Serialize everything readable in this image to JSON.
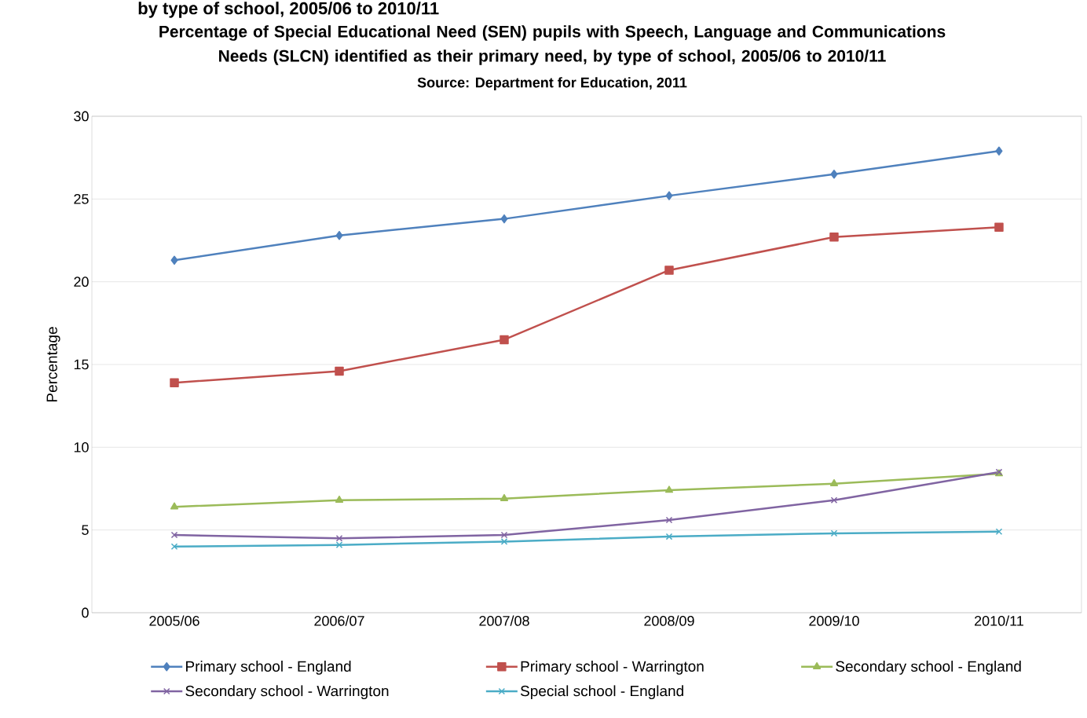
{
  "chart_data": {
    "type": "line",
    "title": "Percentage of Special Educational Need (SEN) pupils with Speech, Language and Communications Needs (SLCN) identified as their primary need, by type of school, 2005/06 to 2010/11",
    "subtitle": "Source: Department for Education, 2011",
    "annotations": [
      "by type of school, 2005/06 to 2010/11"
    ],
    "ylabel": "Percentage",
    "categories": [
      "2005/06",
      "2006/07",
      "2007/08",
      "2008/09",
      "2009/10",
      "2010/11"
    ],
    "series": [
      {
        "name": "Primary school - England",
        "color": "#4f81bd",
        "marker": "diamond",
        "values": [
          21.3,
          22.8,
          23.8,
          25.2,
          26.5,
          27.9
        ]
      },
      {
        "name": "Primary school - Warrington",
        "color": "#c0504d",
        "marker": "square",
        "values": [
          13.9,
          14.6,
          16.5,
          20.7,
          22.7,
          23.3
        ]
      },
      {
        "name": "Secondary school - England",
        "color": "#9bbb59",
        "marker": "triangle",
        "values": [
          6.4,
          6.8,
          6.9,
          7.4,
          7.8,
          8.4
        ]
      },
      {
        "name": "Secondary school - Warrington",
        "color": "#8064a2",
        "marker": "cross",
        "values": [
          4.7,
          4.5,
          4.7,
          5.6,
          6.8,
          8.5
        ]
      },
      {
        "name": "Special school - England",
        "color": "#4bacc6",
        "marker": "cross",
        "values": [
          4.0,
          4.1,
          4.3,
          4.6,
          4.8,
          4.9
        ]
      }
    ],
    "ylim": [
      0,
      30
    ],
    "yticks": [
      0,
      5,
      10,
      15,
      20,
      25,
      30
    ],
    "grid": "y",
    "legend": "bottom",
    "line_style": "solid"
  }
}
